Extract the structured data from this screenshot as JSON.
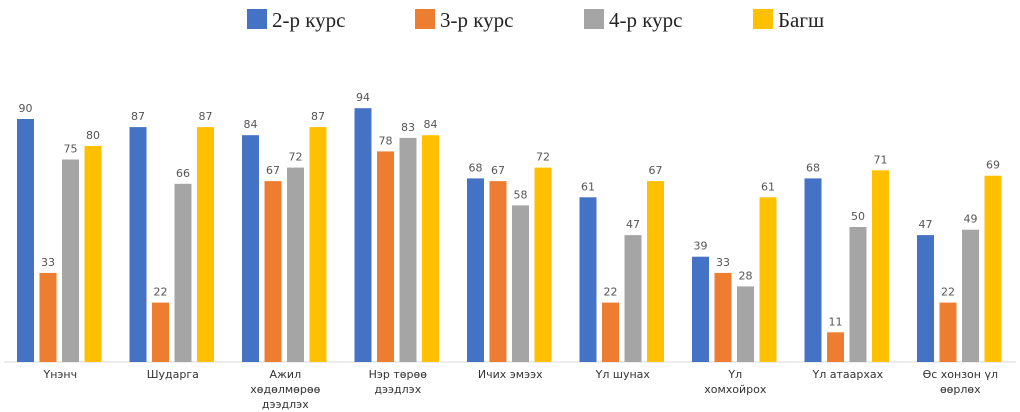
{
  "chart_data": {
    "type": "bar",
    "title": "",
    "xlabel": "",
    "ylabel": "",
    "ylim": [
      0,
      100
    ],
    "grid": false,
    "legend_position": "top",
    "categories": [
      [
        "Үнэнч"
      ],
      [
        "Шударга"
      ],
      [
        "Ажил",
        "хөдөлмөрөө",
        "дээдлэх"
      ],
      [
        "Нэр төрөө",
        "дээдлэх"
      ],
      [
        "Ичих эмээх"
      ],
      [
        "Үл шунах"
      ],
      [
        "Үл",
        "хомхойрох"
      ],
      [
        "Үл атаархах"
      ],
      [
        "Өс хонзон үл",
        "өөрлөх"
      ]
    ],
    "series": [
      {
        "name": "2-р курс",
        "color": "#4472C4",
        "values": [
          90,
          87,
          84,
          94,
          68,
          61,
          39,
          68,
          47
        ]
      },
      {
        "name": "3-р курс",
        "color": "#ED7D31",
        "values": [
          33,
          22,
          67,
          78,
          67,
          22,
          33,
          11,
          22
        ]
      },
      {
        "name": "4-р курс",
        "color": "#A5A5A5",
        "values": [
          75,
          66,
          72,
          83,
          58,
          47,
          28,
          50,
          49
        ]
      },
      {
        "name": "Багш",
        "color": "#FFC000",
        "values": [
          80,
          87,
          87,
          84,
          72,
          67,
          61,
          71,
          69
        ]
      }
    ]
  }
}
